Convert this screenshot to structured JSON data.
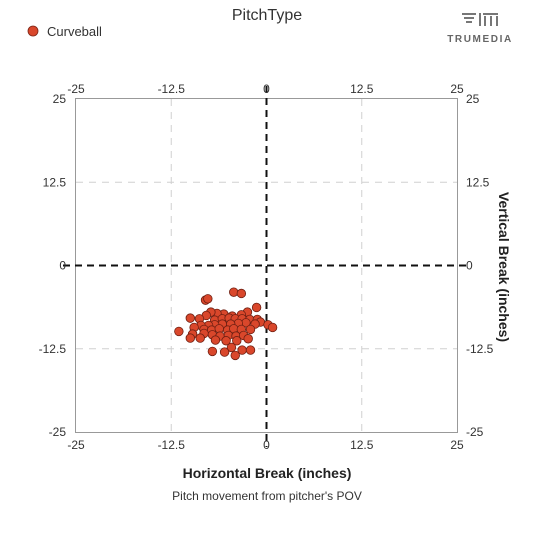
{
  "chart_data": {
    "type": "scatter",
    "title": "PitchType",
    "subtitle": "Pitch movement from pitcher's POV",
    "xlabel": "Horizontal Break (inches)",
    "ylabel": "Vertical Break (inches)",
    "xlim": [
      -25,
      25
    ],
    "ylim": [
      -25,
      25
    ],
    "xticks": [
      "-25",
      "-12.5",
      "0",
      "12.5",
      "25"
    ],
    "yticks": [
      "25",
      "12.5",
      "0",
      "-12.5",
      "-25"
    ],
    "grid": true,
    "legend": "top-left",
    "series": [
      {
        "name": "Curveball",
        "color": "#d9472b",
        "points": [
          [
            -8,
            -5.2
          ],
          [
            -7.7,
            -5
          ],
          [
            -4.3,
            -4
          ],
          [
            -3.3,
            -4.2
          ],
          [
            -1.3,
            -6.3
          ],
          [
            -2.5,
            -7
          ],
          [
            -3.3,
            -7.4
          ],
          [
            -4.5,
            -7.6
          ],
          [
            -5.6,
            -7.3
          ],
          [
            -6.5,
            -7.2
          ],
          [
            -7.3,
            -7
          ],
          [
            -7.9,
            -7.5
          ],
          [
            -10,
            -7.9
          ],
          [
            -8.8,
            -8
          ],
          [
            -6.8,
            -8.2
          ],
          [
            -5.8,
            -8
          ],
          [
            -4.9,
            -7.9
          ],
          [
            -4.1,
            -8
          ],
          [
            -3.2,
            -8
          ],
          [
            -2.2,
            -8.1
          ],
          [
            -1.2,
            -8.1
          ],
          [
            -0.8,
            -8.5
          ],
          [
            -1.5,
            -8.8
          ],
          [
            -2.7,
            -8.6
          ],
          [
            -3.7,
            -8.7
          ],
          [
            -4.7,
            -8.8
          ],
          [
            -5.8,
            -8.8
          ],
          [
            -6.8,
            -8.9
          ],
          [
            -7.6,
            -9
          ],
          [
            -8.6,
            -9
          ],
          [
            -9.5,
            -9.3
          ],
          [
            -8.2,
            -9.6
          ],
          [
            -7.2,
            -9.7
          ],
          [
            -6.2,
            -9.5
          ],
          [
            -5.1,
            -9.7
          ],
          [
            -4.3,
            -9.5
          ],
          [
            -3.3,
            -9.6
          ],
          [
            -2.1,
            -9.6
          ],
          [
            0.2,
            -8.9
          ],
          [
            0.8,
            -9.3
          ],
          [
            -11.5,
            -9.9
          ],
          [
            -9.7,
            -10.3
          ],
          [
            -8.2,
            -10.2
          ],
          [
            -7.1,
            -10.4
          ],
          [
            -6.1,
            -10.6
          ],
          [
            -5,
            -10.5
          ],
          [
            -4,
            -10.6
          ],
          [
            -3,
            -10.5
          ],
          [
            -10,
            -10.9
          ],
          [
            -8.7,
            -10.9
          ],
          [
            -6.7,
            -11.2
          ],
          [
            -5.3,
            -11.3
          ],
          [
            -3.9,
            -11.3
          ],
          [
            -2.4,
            -11
          ],
          [
            -4.6,
            -12.3
          ],
          [
            -3.2,
            -12.7
          ],
          [
            -7.1,
            -12.9
          ],
          [
            -5.5,
            -13
          ],
          [
            -4.1,
            -13.5
          ],
          [
            -2.1,
            -12.7
          ]
        ]
      }
    ]
  },
  "brand": {
    "name": "TRUMEDIA",
    "logo": "tm-logo-icon"
  }
}
